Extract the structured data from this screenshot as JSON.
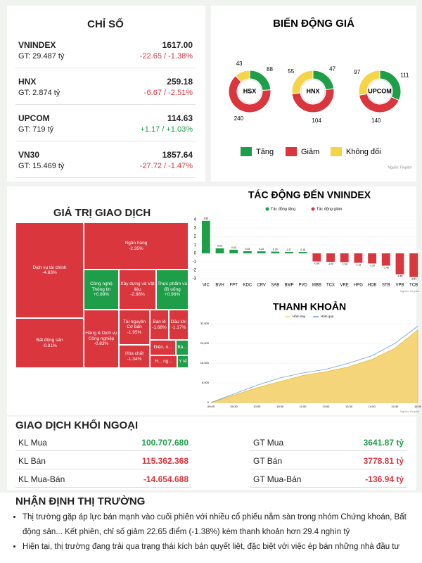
{
  "indices": {
    "title": "CHỈ SỐ",
    "items": [
      {
        "name": "VNINDEX",
        "gt": "GT: 29.487 tỷ",
        "value": "1617.00",
        "change": "-22.65 / -1.38%",
        "color": "#d9363e"
      },
      {
        "name": "HNX",
        "gt": "GT: 2.874 tỷ",
        "value": "259.18",
        "change": "-6.67 / -2.51%",
        "color": "#d9363e"
      },
      {
        "name": "UPCOM",
        "gt": "GT: 719 tỷ",
        "value": "114.63",
        "change": "+1.17 / +1.03%",
        "color": "#1e9e48"
      },
      {
        "name": "VN30",
        "gt": "GT: 15.469 tỷ",
        "value": "1857.64",
        "change": "-27.72 / -1.47%",
        "color": "#d9363e"
      }
    ]
  },
  "chart_data": [
    {
      "type": "donut",
      "title": "BIẾN ĐỘNG GIÁ",
      "categories": [
        "Tăng",
        "Giảm",
        "Không đổi"
      ],
      "colors": [
        "#1e9e48",
        "#d9363e",
        "#f5d547"
      ],
      "series": [
        {
          "name": "HSX",
          "values": [
            88,
            240,
            43
          ]
        },
        {
          "name": "HNX",
          "values": [
            47,
            104,
            55
          ]
        },
        {
          "name": "UPCOM",
          "values": [
            111,
            140,
            97
          ]
        }
      ],
      "source": "Nguồn: Finpilot"
    },
    {
      "type": "bar",
      "title": "TÁC ĐỘNG ĐẾN VNINDEX",
      "legend": [
        "Tác động tăng",
        "Tác động giảm"
      ],
      "colors": [
        "#1e9e48",
        "#d9363e"
      ],
      "categories": [
        "VIC",
        "BVH",
        "FPT",
        "KDC",
        "CRV",
        "SAB",
        "BMP",
        "PVD",
        "MBB",
        "TCX",
        "VRE",
        "HPG",
        "HDB",
        "STB",
        "VPB",
        "TCB"
      ],
      "values": [
        3.85,
        0.6,
        0.43,
        0.25,
        0.24,
        0.2,
        0.17,
        0.16,
        -0.96,
        -1,
        -1.04,
        -1.12,
        -1.2,
        -1.46,
        -2.48,
        -2.81
      ],
      "value_labels": [
        "3.85",
        "0.60",
        "0.43",
        "0.25",
        "0.24",
        "0.20",
        "0.17",
        "0.16",
        "-0.96",
        "-1.00",
        "-1.04",
        "-1.12",
        "-1.20",
        "-1.46",
        "-2.48",
        "-2.81"
      ],
      "ylim": [
        -3,
        4
      ],
      "yticks": [
        4,
        3,
        2,
        1,
        0,
        -1,
        -2,
        -3
      ],
      "source": "Nguồn: Finpilot"
    },
    {
      "type": "area",
      "title": "THANH KHOẢN",
      "categories": [
        "09:00",
        "09:30",
        "10:00",
        "10:30",
        "11:00",
        "13:00",
        "13:30",
        "14:00",
        "14:30",
        "15:00"
      ],
      "series": [
        {
          "name": "Hôm nay",
          "color": "#f5d57a",
          "values": [
            0,
            3000,
            6000,
            8500,
            11000,
            12500,
            14500,
            17500,
            22000,
            29487
          ]
        },
        {
          "name": "Hôm qua",
          "color": "#6f9fd8",
          "values": [
            0,
            3500,
            7000,
            10000,
            12000,
            13500,
            16000,
            19000,
            24000,
            31000
          ]
        }
      ],
      "ylim": [
        0,
        32000
      ],
      "yticks": [
        0,
        {
          "value": 8000,
          "label": "8,000"
        },
        {
          "value": 16000,
          "label": "16,000"
        },
        {
          "value": 24000,
          "label": "24,000"
        },
        {
          "value": 32000,
          "label": "32,000"
        }
      ],
      "source": "Nguồn: Finpilot"
    }
  ],
  "treemap": {
    "title": "GIÁ TRỊ GIAO DỊCH",
    "tiles": [
      {
        "name": "Dịch vụ tài chính",
        "change": "-4.83%",
        "color": "#d9363e"
      },
      {
        "name": "Bất động sản",
        "change": "-0.91%",
        "color": "#d9363e"
      },
      {
        "name": "Ngân hàng",
        "change": "-2.35%",
        "color": "#d9363e"
      },
      {
        "name": "Công nghệ Thông tin",
        "change": "+0.89%",
        "color": "#1e9e48"
      },
      {
        "name": "Xây dựng và Vật liệu",
        "change": "-2.66%",
        "color": "#d9363e"
      },
      {
        "name": "Thực phẩm và đồ uống",
        "change": "+0.96%",
        "color": "#1e9e48"
      },
      {
        "name": "Hàng & Dịch vụ Công nghiệp",
        "change": "-0.83%",
        "color": "#d9363e"
      },
      {
        "name": "Tài nguyên Cơ bản",
        "change": "-1.95%",
        "color": "#d9363e"
      },
      {
        "name": "Hóa chất",
        "change": "-1.34%",
        "color": "#d9363e"
      },
      {
        "name": "Bán lẻ",
        "change": "-1.68%",
        "color": "#d9363e"
      },
      {
        "name": "Dầu khí",
        "change": "-1.17%",
        "color": "#d9363e"
      },
      {
        "name": "Điện, n...",
        "color": "#d9363e"
      },
      {
        "name": "Bả...",
        "color": "#1e9e48"
      },
      {
        "name": "H... ng...",
        "color": "#d9363e"
      },
      {
        "name": "Y tế",
        "color": "#1e9e48"
      }
    ]
  },
  "foreign": {
    "title": "GIAO DỊCH KHỐI NGOẠI",
    "rows": [
      [
        {
          "label": "KL Mua",
          "value": "100.707.680",
          "color": "#1e9e48"
        },
        {
          "label": "GT Mua",
          "value": "3641.87 tỷ",
          "color": "#1e9e48"
        }
      ],
      [
        {
          "label": "KL Bán",
          "value": "115.362.368",
          "color": "#d9363e"
        },
        {
          "label": "GT Bán",
          "value": "3778.81 tỷ",
          "color": "#d9363e"
        }
      ],
      [
        {
          "label": "KL Mua-Bán",
          "value": "-14.654.688",
          "color": "#d9363e"
        },
        {
          "label": "GT Mua-Bán",
          "value": "-136.94 tỷ",
          "color": "#d9363e"
        }
      ]
    ]
  },
  "outlook": {
    "title": "NHẬN ĐỊNH THỊ TRƯỜNG",
    "bullets": [
      "Thị trường gặp áp lực bán mạnh vào cuối phiên với nhiều cổ phiếu nằm sàn trong nhóm Chứng khoán, Bất động sản... Kết phiên, chỉ số giảm 22.65 điểm (-1.38%) kèm thanh khoản hơn 29.4 nghìn tỷ",
      "Hiện tại, thị trường đang trải qua trạng thái kích bán quyết liệt, đặc biệt với việc ép bán những nhà đầu tư"
    ]
  }
}
